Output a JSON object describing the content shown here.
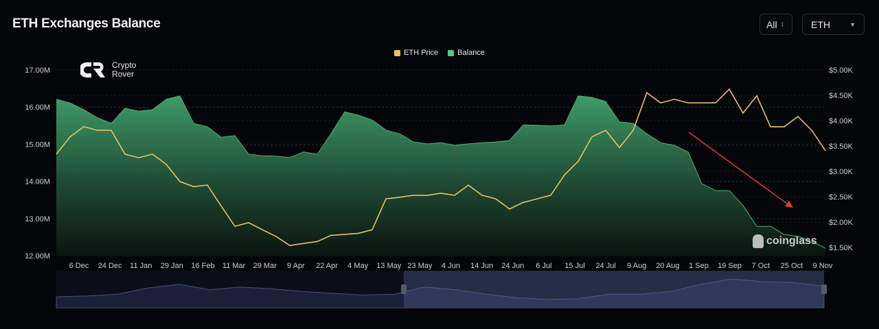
{
  "header": {
    "title": "ETH Exchanges Balance"
  },
  "controls": {
    "range_label": "All",
    "range_icon": "up-down-chevron-icon",
    "asset_label": "ETH",
    "asset_icon": "caret-down-icon"
  },
  "watermarks": {
    "logo_line1": "Crypto",
    "logo_line2": "Rover",
    "brand": "coinglass"
  },
  "colors": {
    "price": "#e8c260",
    "balance": "#4fb07a",
    "arrow": "#e03c3c",
    "background": "#050609"
  },
  "chart_data": {
    "type": "line",
    "title": "ETH Exchanges Balance",
    "legend": {
      "placement": "top-center",
      "entries": [
        "ETH Price",
        "Balance"
      ]
    },
    "grid": true,
    "x_tick_labels": [
      "6 Dec",
      "24 Dec",
      "11 Jan",
      "29 Jan",
      "16 Feb",
      "11 Mar",
      "29 Mar",
      "9 Apr",
      "22 Apr",
      "4 May",
      "13 May",
      "23 May",
      "4 Jun",
      "14 Jun",
      "24 Jun",
      "6 Jul",
      "15 Jul",
      "24 Jul",
      "9 Aug",
      "20 Aug",
      "1 Sep",
      "19 Sep",
      "7 Oct",
      "25 Oct",
      "9 Nov"
    ],
    "left_axis": {
      "ticks": [
        "17.00M",
        "16.00M",
        "15.00M",
        "14.00M",
        "13.00M",
        "12.00M"
      ],
      "ylim": [
        12,
        17
      ],
      "unit": "M"
    },
    "right_axis": {
      "ticks": [
        "$5.00K",
        "$4.50K",
        "$4.00K",
        "$3.50K",
        "$3.00K",
        "$2.50K",
        "$2.00K",
        "$1.50K"
      ],
      "ylim": [
        1.34,
        5.0
      ],
      "unit": "K USD"
    },
    "series": [
      {
        "name": "Balance",
        "type": "area",
        "axis": "left",
        "values": [
          16.21,
          16.11,
          15.93,
          15.71,
          15.56,
          15.97,
          15.89,
          15.93,
          16.21,
          16.3,
          15.56,
          15.47,
          15.19,
          15.23,
          14.73,
          14.69,
          14.68,
          14.64,
          14.79,
          14.73,
          15.28,
          15.87,
          15.78,
          15.65,
          15.38,
          15.28,
          15.06,
          15.01,
          15.04,
          14.97,
          15.01,
          15.04,
          15.06,
          15.1,
          15.52,
          15.51,
          15.49,
          15.52,
          16.3,
          16.26,
          16.15,
          15.6,
          15.56,
          15.28,
          15.04,
          14.97,
          14.79,
          13.94,
          13.75,
          13.75,
          13.35,
          12.79,
          12.79,
          12.57,
          12.52,
          12.39,
          12.2
        ]
      },
      {
        "name": "ETH Price",
        "type": "line",
        "axis": "right",
        "values": [
          3.34,
          3.68,
          3.88,
          3.81,
          3.81,
          3.34,
          3.27,
          3.34,
          3.14,
          2.8,
          2.7,
          2.73,
          2.32,
          1.92,
          1.99,
          1.85,
          1.72,
          1.54,
          1.58,
          1.62,
          1.74,
          1.76,
          1.78,
          1.85,
          2.46,
          2.49,
          2.53,
          2.53,
          2.57,
          2.53,
          2.73,
          2.53,
          2.46,
          2.26,
          2.39,
          2.46,
          2.53,
          2.93,
          3.2,
          3.68,
          3.81,
          3.47,
          3.81,
          4.55,
          4.35,
          4.42,
          4.35,
          4.35,
          4.35,
          4.62,
          4.15,
          4.49,
          3.88,
          3.88,
          4.08,
          3.81,
          3.41
        ]
      }
    ],
    "annotations": [
      {
        "type": "arrow",
        "direction": "down-right",
        "color": "#e03c3c"
      }
    ],
    "navigator": {
      "values": [
        1.2,
        1.3,
        1.5,
        2.2,
        2.6,
        2.0,
        2.3,
        2.1,
        1.8,
        1.6,
        1.4,
        1.5,
        2.3,
        2.0,
        1.5,
        1.1,
        0.9,
        1.0,
        1.5,
        1.5,
        1.8,
        2.6,
        3.2,
        2.9,
        2.8,
        2.4
      ],
      "selection": [
        "23 May",
        "9 Nov"
      ]
    }
  }
}
